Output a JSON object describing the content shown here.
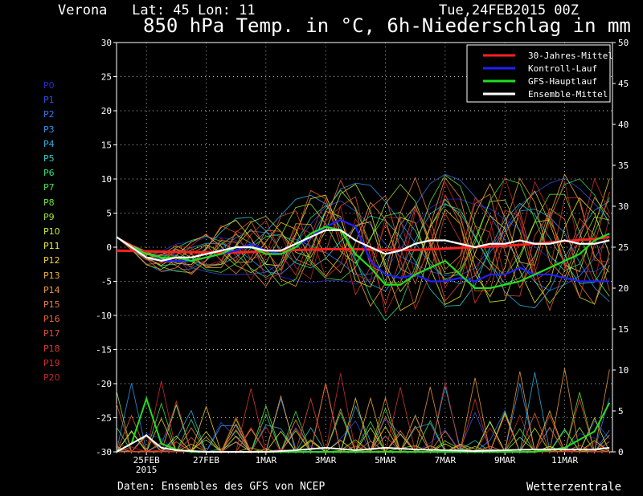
{
  "header": {
    "location": "Verona   Lat: 45 Lon: 11",
    "date": "Tue,24FEB2015 00Z",
    "title": "850 hPa Temp. in °C, 6h-Niederschlag in mm"
  },
  "members": [
    {
      "label": "P0",
      "color": "#2b2bd6"
    },
    {
      "label": "P1",
      "color": "#2e55e6"
    },
    {
      "label": "P2",
      "color": "#3078f0"
    },
    {
      "label": "P3",
      "color": "#2f96ee"
    },
    {
      "label": "P4",
      "color": "#2cb4e6"
    },
    {
      "label": "P5",
      "color": "#2ed2c4"
    },
    {
      "label": "P6",
      "color": "#35e07a"
    },
    {
      "label": "P7",
      "color": "#42e646"
    },
    {
      "label": "P8",
      "color": "#6ee438"
    },
    {
      "label": "P9",
      "color": "#9ee834"
    },
    {
      "label": "P10",
      "color": "#c8ee2e"
    },
    {
      "label": "P11",
      "color": "#f0f02e"
    },
    {
      "label": "P12",
      "color": "#f4d22e"
    },
    {
      "label": "P13",
      "color": "#f4b42e"
    },
    {
      "label": "P14",
      "color": "#f09a36"
    },
    {
      "label": "P15",
      "color": "#ee7e38"
    },
    {
      "label": "P16",
      "color": "#ea6436"
    },
    {
      "label": "P17",
      "color": "#e44c34"
    },
    {
      "label": "P18",
      "color": "#dc3a30"
    },
    {
      "label": "P19",
      "color": "#d42c2c"
    },
    {
      "label": "P20",
      "color": "#c42424"
    }
  ],
  "footer": {
    "source": "Daten: Ensembles des GFS von NCEP",
    "brand": "Wetterzentrale"
  },
  "chart_data": {
    "type": "line",
    "x_unit": "date",
    "x_range": [
      "2015-02-24 00Z",
      "2015-03-12 12Z"
    ],
    "x_ticks": [
      "25FEB",
      "27FEB",
      "1MAR",
      "3MAR",
      "5MAR",
      "7MAR",
      "9MAR",
      "11MAR"
    ],
    "x_tick_sublabel": {
      "25FEB": "2015"
    },
    "y_left": {
      "label": "°C",
      "range": [
        -30,
        30
      ],
      "ticks": [
        -30,
        -25,
        -20,
        -15,
        -10,
        -5,
        0,
        5,
        10,
        15,
        20,
        25,
        30
      ]
    },
    "y_right": {
      "label": "mm",
      "range": [
        0,
        50
      ],
      "ticks": [
        0,
        5,
        10,
        15,
        20,
        25,
        30,
        35,
        40,
        45,
        50
      ]
    },
    "grid": true,
    "legend": {
      "position": "top-right",
      "entries": [
        {
          "name": "30-Jahres-Mittel",
          "color": "#ff2020"
        },
        {
          "name": "Kontroll-Lauf",
          "color": "#2020ff"
        },
        {
          "name": "GFS-Hauptlauf",
          "color": "#20e020"
        },
        {
          "name": "Ensemble-Mittel",
          "color": "#ffffff"
        }
      ]
    },
    "temperature_series": [
      {
        "name": "30-Jahres-Mittel",
        "color": "#ff2020",
        "values": [
          [
            0,
            -0.5
          ],
          [
            2,
            -0.7
          ],
          [
            4,
            -0.8
          ],
          [
            5,
            -0.6
          ],
          [
            6,
            -0.4
          ],
          [
            7,
            -0.3
          ],
          [
            8,
            -0.3
          ],
          [
            9,
            -0.4
          ],
          [
            10,
            -0.4
          ],
          [
            11,
            -0.2
          ],
          [
            12,
            0
          ],
          [
            13,
            0.2
          ],
          [
            14,
            0.5
          ],
          [
            15,
            0.9
          ],
          [
            16,
            1.2
          ],
          [
            16.5,
            1.5
          ]
        ]
      },
      {
        "name": "Kontroll-Lauf",
        "color": "#2020ff",
        "values": [
          [
            0,
            1.5
          ],
          [
            0.5,
            0
          ],
          [
            1,
            -1.5
          ],
          [
            1.5,
            -2
          ],
          [
            2,
            -2
          ],
          [
            2.5,
            -2
          ],
          [
            3,
            -1.5
          ],
          [
            3.5,
            -1
          ],
          [
            4,
            -0.5
          ],
          [
            4.5,
            0.5
          ],
          [
            5,
            -0.5
          ],
          [
            5.5,
            -1
          ],
          [
            6,
            0
          ],
          [
            6.5,
            1.5
          ],
          [
            7,
            3
          ],
          [
            7.5,
            4
          ],
          [
            8,
            3
          ],
          [
            8.5,
            -2
          ],
          [
            9,
            -4
          ],
          [
            9.5,
            -4.5
          ],
          [
            10,
            -4
          ],
          [
            10.5,
            -5
          ],
          [
            11,
            -5
          ],
          [
            11.5,
            -4.5
          ],
          [
            12,
            -5
          ],
          [
            12.5,
            -4
          ],
          [
            13,
            -4
          ],
          [
            13.5,
            -3
          ],
          [
            14,
            -4
          ],
          [
            14.5,
            -4
          ],
          [
            15,
            -4.5
          ],
          [
            15.5,
            -5
          ],
          [
            16,
            -5
          ],
          [
            16.5,
            -5
          ]
        ]
      },
      {
        "name": "GFS-Hauptlauf",
        "color": "#20e020",
        "values": [
          [
            0,
            1.5
          ],
          [
            0.5,
            0
          ],
          [
            1,
            -1
          ],
          [
            1.5,
            -1.5
          ],
          [
            2,
            -1.5
          ],
          [
            2.5,
            -2
          ],
          [
            3,
            -1.5
          ],
          [
            3.5,
            -1
          ],
          [
            4,
            0
          ],
          [
            4.5,
            0
          ],
          [
            5,
            -1
          ],
          [
            5.5,
            -1
          ],
          [
            6,
            0
          ],
          [
            6.5,
            2
          ],
          [
            7,
            3
          ],
          [
            7.5,
            2.5
          ],
          [
            8,
            -1
          ],
          [
            8.5,
            -3
          ],
          [
            9,
            -5.5
          ],
          [
            9.5,
            -5.5
          ],
          [
            10,
            -4
          ],
          [
            10.5,
            -3
          ],
          [
            11,
            -2
          ],
          [
            11.5,
            -4
          ],
          [
            12,
            -6
          ],
          [
            12.5,
            -6
          ],
          [
            13,
            -5.5
          ],
          [
            13.5,
            -5
          ],
          [
            14,
            -4
          ],
          [
            14.5,
            -3
          ],
          [
            15,
            -2
          ],
          [
            15.5,
            -1
          ],
          [
            16,
            1
          ],
          [
            16.5,
            2
          ]
        ]
      },
      {
        "name": "Ensemble-Mittel",
        "color": "#ffffff",
        "values": [
          [
            0,
            1.5
          ],
          [
            0.5,
            0
          ],
          [
            1,
            -1.5
          ],
          [
            1.5,
            -2
          ],
          [
            2,
            -1.5
          ],
          [
            2.5,
            -1.5
          ],
          [
            3,
            -1
          ],
          [
            3.5,
            -0.5
          ],
          [
            4,
            0
          ],
          [
            4.5,
            0
          ],
          [
            5,
            -0.5
          ],
          [
            5.5,
            -0.5
          ],
          [
            6,
            0.5
          ],
          [
            6.5,
            1.5
          ],
          [
            7,
            2.5
          ],
          [
            7.5,
            2.5
          ],
          [
            8,
            1
          ],
          [
            8.5,
            0
          ],
          [
            9,
            -1
          ],
          [
            9.5,
            -0.5
          ],
          [
            10,
            0.5
          ],
          [
            10.5,
            1
          ],
          [
            11,
            1
          ],
          [
            11.5,
            0.5
          ],
          [
            12,
            0
          ],
          [
            12.5,
            0.5
          ],
          [
            13,
            0.5
          ],
          [
            13.5,
            1
          ],
          [
            14,
            0.5
          ],
          [
            14.5,
            0.5
          ],
          [
            15,
            1
          ],
          [
            15.5,
            0.5
          ],
          [
            16,
            0.5
          ],
          [
            16.5,
            1
          ]
        ]
      }
    ],
    "precip_series": [
      {
        "name": "GFS-Hauptlauf",
        "color": "#20e020",
        "values": [
          [
            0,
            0
          ],
          [
            0.5,
            1
          ],
          [
            1,
            6.5
          ],
          [
            1.5,
            1
          ],
          [
            2,
            0.3
          ],
          [
            2.5,
            0
          ],
          [
            3,
            0
          ],
          [
            4,
            0
          ],
          [
            5,
            0
          ],
          [
            6,
            0
          ],
          [
            7,
            0
          ],
          [
            8,
            0
          ],
          [
            9,
            0
          ],
          [
            10,
            0
          ],
          [
            11,
            0
          ],
          [
            12,
            0
          ],
          [
            13,
            0
          ],
          [
            14,
            0
          ],
          [
            15,
            0.5
          ],
          [
            15.5,
            1.5
          ],
          [
            16,
            2.5
          ],
          [
            16.5,
            6
          ]
        ]
      },
      {
        "name": "Ensemble-Mittel",
        "color": "#ffffff",
        "values": [
          [
            0,
            0
          ],
          [
            0.5,
            1
          ],
          [
            1,
            2
          ],
          [
            1.5,
            0.5
          ],
          [
            2,
            0.2
          ],
          [
            3,
            0
          ],
          [
            4,
            0
          ],
          [
            5,
            0
          ],
          [
            6,
            0.2
          ],
          [
            7,
            0.5
          ],
          [
            8,
            0.2
          ],
          [
            9,
            0.5
          ],
          [
            10,
            0.3
          ],
          [
            11,
            0.2
          ],
          [
            12,
            0.1
          ],
          [
            13,
            0.2
          ],
          [
            14,
            0.3
          ],
          [
            15,
            0.3
          ],
          [
            16,
            0.3
          ],
          [
            16.5,
            0.5
          ]
        ]
      }
    ],
    "ensemble_envelope": {
      "temperature_range_note": "",
      "precip_peak_mm": 14
    }
  }
}
